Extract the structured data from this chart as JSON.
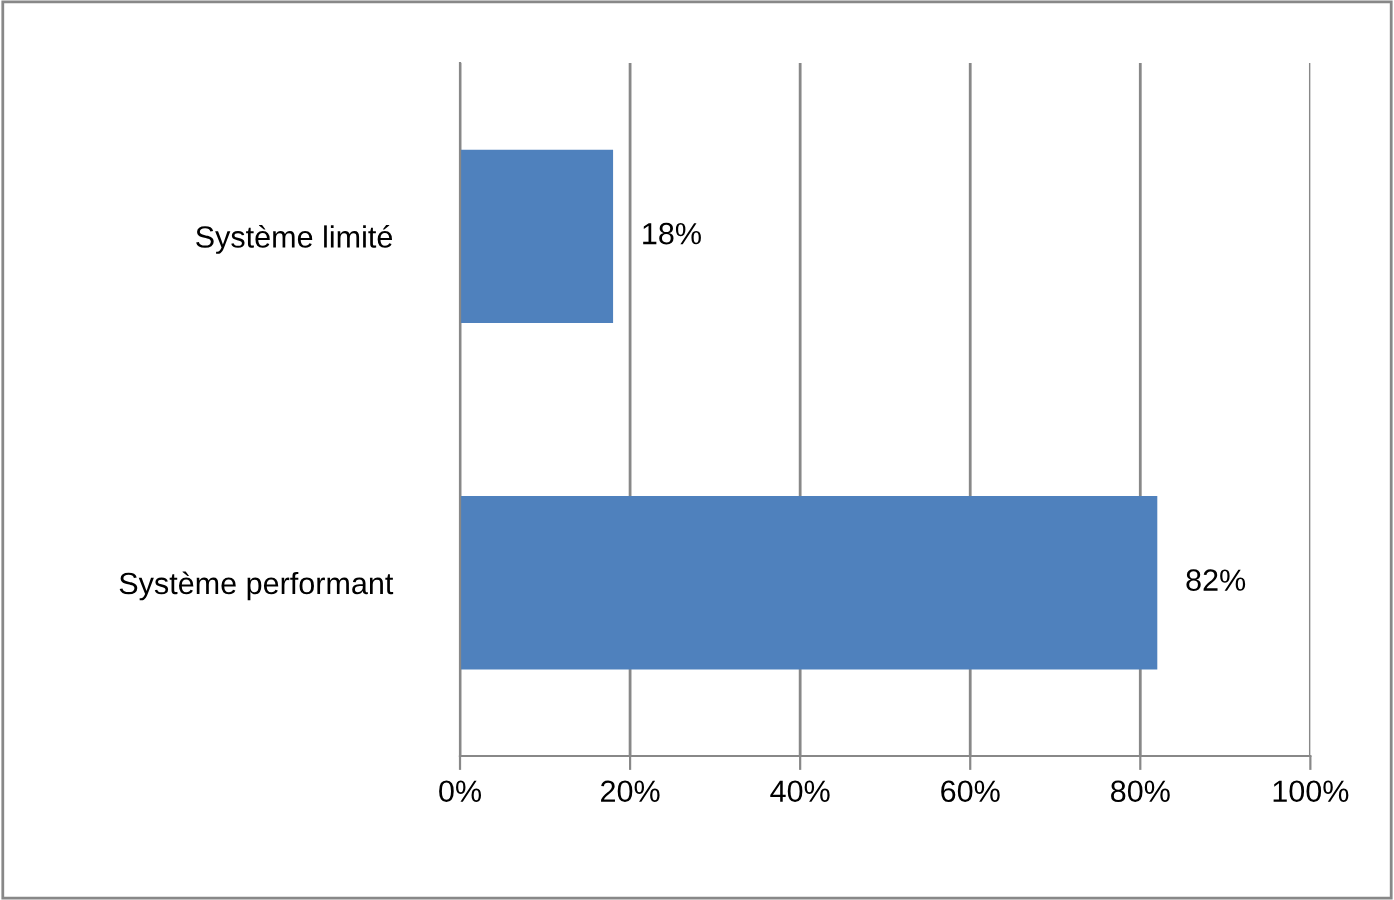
{
  "chart_data": {
    "type": "bar",
    "orientation": "horizontal",
    "categories": [
      "Système limité",
      "Système performant"
    ],
    "values": [
      18,
      82
    ],
    "value_labels": [
      "18%",
      "82%"
    ],
    "color": "#4f81bd",
    "xlim": [
      0,
      100
    ],
    "xticks": [
      {
        "value": 0,
        "label": "0%"
      },
      {
        "value": 20,
        "label": "20%"
      },
      {
        "value": 40,
        "label": "40%"
      },
      {
        "value": 60,
        "label": "60%"
      },
      {
        "value": 80,
        "label": "80%"
      },
      {
        "value": 100,
        "label": "100%"
      }
    ],
    "grid": "x",
    "legend": false
  }
}
